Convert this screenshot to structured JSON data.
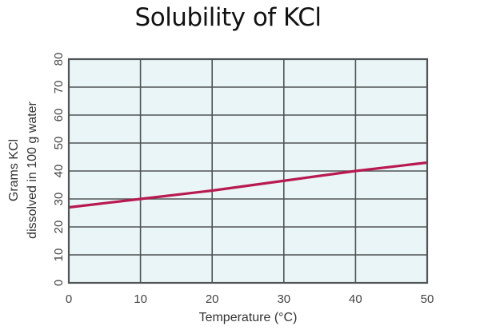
{
  "chart_data": {
    "type": "line",
    "title": "Solubility of KCl",
    "xlabel": "Temperature (°C)",
    "ylabel_lines": [
      "Grams KCl",
      "dissolved in 100 g water"
    ],
    "ylabel": "Grams KCl dissolved in 100 g water",
    "x": [
      0,
      10,
      20,
      30,
      40,
      50
    ],
    "series": [
      {
        "name": "KCl",
        "values": [
          27,
          30,
          33,
          36.5,
          40,
          43
        ],
        "color": "#b8194f"
      }
    ],
    "xlim": [
      0,
      50
    ],
    "ylim": [
      0,
      80
    ],
    "xticks": [
      "0",
      "10",
      "20",
      "30",
      "40",
      "50"
    ],
    "yticks": [
      "0",
      "10",
      "20",
      "30",
      "40",
      "50",
      "60",
      "70",
      "80"
    ],
    "grid": true,
    "legend": null
  },
  "style": {
    "plot_bg": "#eaf5f7",
    "grid_color": "#4f5456",
    "line_color": "#b8194f"
  }
}
